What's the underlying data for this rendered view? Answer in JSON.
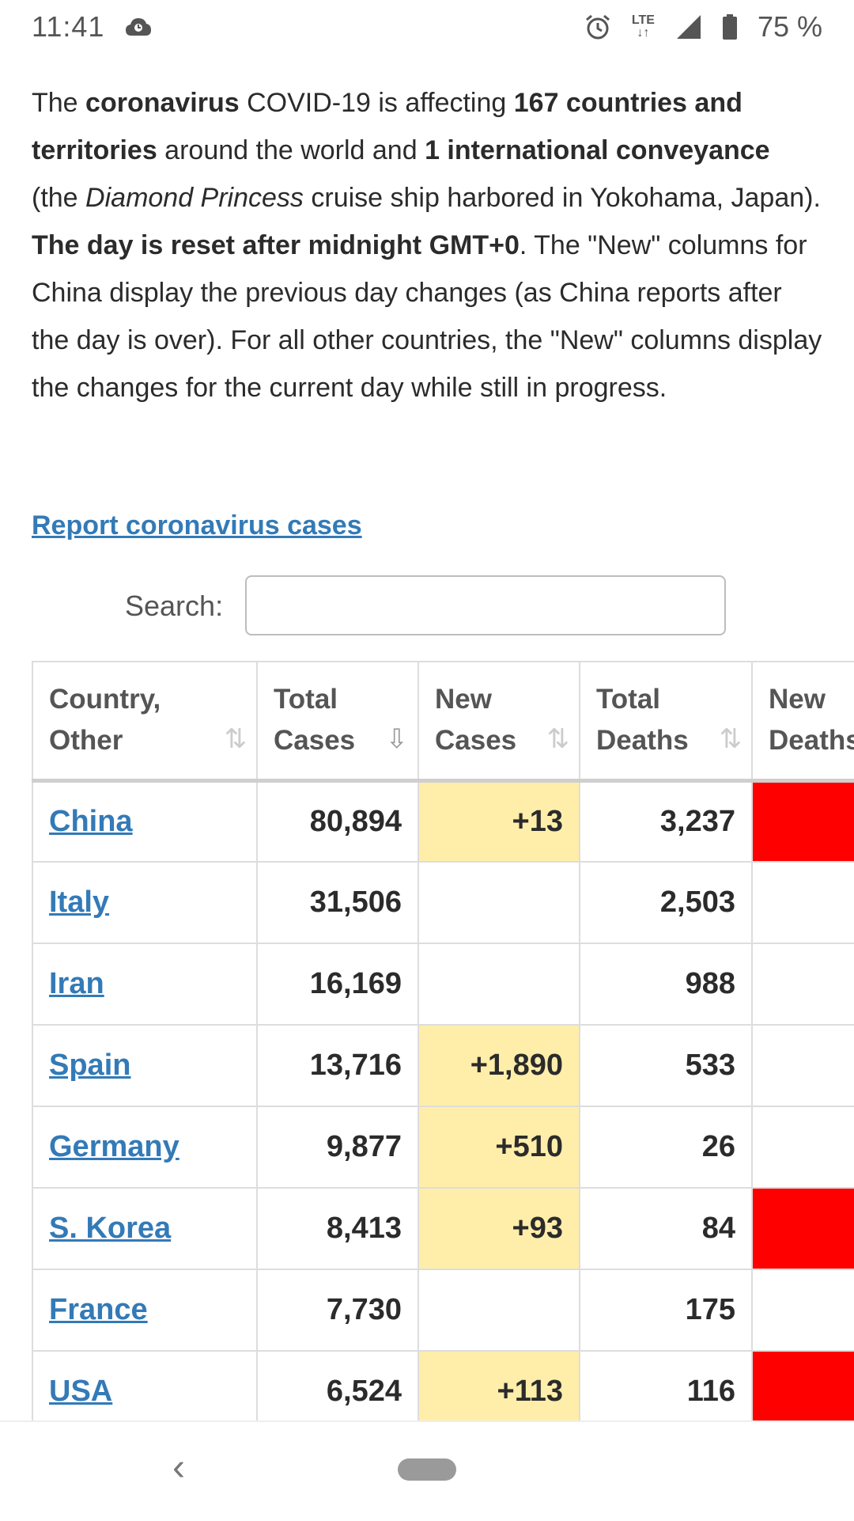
{
  "status_bar": {
    "time": "11:41",
    "battery": "75 %",
    "network": "LTE",
    "icons": [
      "cloud-icon",
      "alarm-icon",
      "lte-data-icon",
      "signal-icon",
      "battery-icon"
    ]
  },
  "intro": {
    "p1": "The ",
    "b1": "coronavirus",
    "p2": " COVID-19 is affecting ",
    "b2": "167 countries and territories",
    "p3": " around the world and ",
    "b3": "1 international conveyance",
    "p4": " (the ",
    "i1": "Diamond Princess",
    "p5": " cruise ship harbored in Yokohama, Japan). ",
    "b4": "The day is reset after midnight GMT+0",
    "p6": ". The \"New\" columns for China display the previous day changes (as China reports after the day is over). For all other countries, the \"New\" columns display the changes for the current day while still in progress."
  },
  "report_link": "Report coronavirus cases",
  "search": {
    "label": "Search:",
    "value": "",
    "placeholder": ""
  },
  "table": {
    "headers": [
      {
        "line1": "Country,",
        "line2": "Other",
        "sort": "⇅"
      },
      {
        "line1": "Total",
        "line2": "Cases",
        "sort": "⇩"
      },
      {
        "line1": "New",
        "line2": "Cases",
        "sort": "⇅"
      },
      {
        "line1": "Total",
        "line2": "Deaths",
        "sort": "⇅"
      },
      {
        "line1": "New",
        "line2": "Deaths",
        "sort": ""
      }
    ],
    "rows": [
      {
        "country": "China",
        "total_cases": "80,894",
        "new_cases": "+13",
        "total_deaths": "3,237",
        "new_deaths_highlight": true
      },
      {
        "country": "Italy",
        "total_cases": "31,506",
        "new_cases": "",
        "total_deaths": "2,503",
        "new_deaths_highlight": false
      },
      {
        "country": "Iran",
        "total_cases": "16,169",
        "new_cases": "",
        "total_deaths": "988",
        "new_deaths_highlight": false
      },
      {
        "country": "Spain",
        "total_cases": "13,716",
        "new_cases": "+1,890",
        "total_deaths": "533",
        "new_deaths_highlight": false
      },
      {
        "country": "Germany",
        "total_cases": "9,877",
        "new_cases": "+510",
        "total_deaths": "26",
        "new_deaths_highlight": false
      },
      {
        "country": "S. Korea",
        "total_cases": "8,413",
        "new_cases": "+93",
        "total_deaths": "84",
        "new_deaths_highlight": true
      },
      {
        "country": "France",
        "total_cases": "7,730",
        "new_cases": "",
        "total_deaths": "175",
        "new_deaths_highlight": false
      },
      {
        "country": "USA",
        "total_cases": "6,524",
        "new_cases": "+113",
        "total_deaths": "116",
        "new_deaths_highlight": true
      }
    ]
  },
  "colors": {
    "link": "#337ab7",
    "new_cases_bg": "#ffeeaa",
    "new_deaths_bg": "#ff0000",
    "border": "#dddddd"
  },
  "nav": {
    "back_icon": "back-chevron-icon",
    "home_icon": "home-pill-icon"
  }
}
